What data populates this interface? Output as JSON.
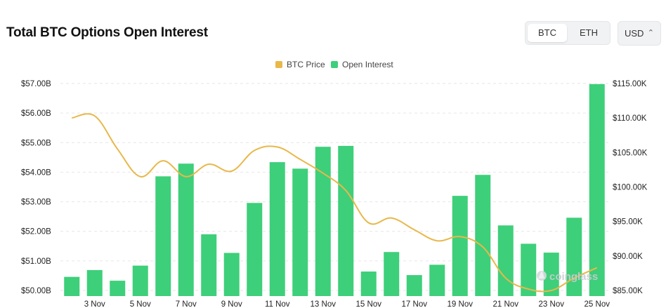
{
  "header": {
    "title": "Total BTC Options Open Interest"
  },
  "controls": {
    "asset_tabs": [
      {
        "label": "BTC",
        "active": true
      },
      {
        "label": "ETH",
        "active": false
      }
    ],
    "currency": {
      "value": "USD",
      "icon": "chevron-up-down-icon"
    }
  },
  "legend": [
    {
      "label": "BTC Price",
      "color": "#e8b84a"
    },
    {
      "label": "Open Interest",
      "color": "#3ecf7a"
    }
  ],
  "watermark": {
    "text": "coinglass",
    "icon": "coinglass-logo-icon"
  },
  "chart_data": {
    "type": "bar",
    "categories": [
      "2 Nov",
      "3 Nov",
      "4 Nov",
      "5 Nov",
      "6 Nov",
      "7 Nov",
      "8 Nov",
      "9 Nov",
      "10 Nov",
      "11 Nov",
      "12 Nov",
      "13 Nov",
      "14 Nov",
      "15 Nov",
      "16 Nov",
      "17 Nov",
      "18 Nov",
      "19 Nov",
      "20 Nov",
      "21 Nov",
      "22 Nov",
      "23 Nov",
      "24 Nov",
      "25 Nov"
    ],
    "x_tick_labels": [
      "3 Nov",
      "5 Nov",
      "7 Nov",
      "9 Nov",
      "11 Nov",
      "13 Nov",
      "15 Nov",
      "17 Nov",
      "19 Nov",
      "21 Nov",
      "23 Nov",
      "25 Nov"
    ],
    "series": [
      {
        "name": "Open Interest",
        "axis": "left",
        "color": "#3ecf7a",
        "values": [
          50.46,
          50.69,
          50.33,
          50.84,
          53.86,
          54.29,
          51.9,
          51.27,
          52.96,
          54.34,
          54.12,
          54.86,
          54.89,
          50.64,
          51.3,
          50.52,
          50.87,
          53.2,
          53.91,
          52.2,
          51.58,
          51.28,
          52.46,
          56.98
        ]
      },
      {
        "name": "BTC Price",
        "axis": "right",
        "color": "#e8b84a",
        "type": "line",
        "values": [
          110.0,
          110.3,
          105.5,
          101.5,
          103.8,
          101.5,
          103.3,
          102.3,
          105.3,
          105.8,
          104.0,
          102.0,
          99.5,
          94.8,
          95.5,
          93.8,
          92.2,
          92.8,
          91.3,
          86.8,
          85.2,
          85.0,
          86.8,
          88.3
        ]
      }
    ],
    "yaxis_left": {
      "ticks": [
        "$50.00B",
        "$51.00B",
        "$52.00B",
        "$53.00B",
        "$54.00B",
        "$55.00B",
        "$56.00B",
        "$57.00B"
      ],
      "range": [
        50,
        57
      ]
    },
    "yaxis_right": {
      "ticks": [
        "$85.00K",
        "$90.00K",
        "$95.00K",
        "$100.00K",
        "$105.00K",
        "$110.00K",
        "$115.00K"
      ],
      "range": [
        85,
        115
      ]
    },
    "grid": true,
    "legend_position": "top-center"
  }
}
